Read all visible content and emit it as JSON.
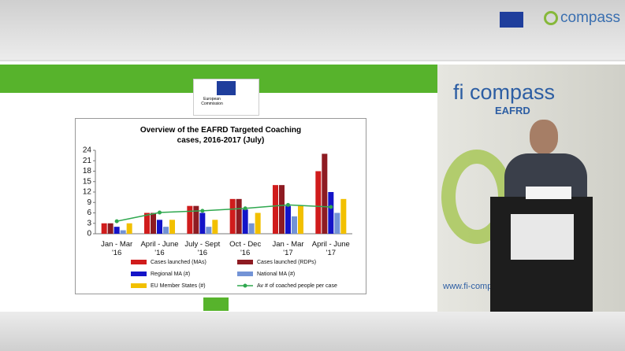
{
  "page": {
    "logo_text": "compass",
    "backdrop_brand": "fi compass",
    "backdrop_sub": "EAFRD",
    "backdrop_url": "www.fi-compass.eu",
    "ec_logo": "European Commission"
  },
  "chart_data": {
    "type": "bar",
    "title": "Overview of the EAFRD Targeted Coaching cases, 2016-2017 (July)",
    "categories": [
      "Jan - Mar\n'16",
      "April - June\n'16",
      "July - Sept\n'16",
      "Oct - Dec\n'16",
      "Jan - Mar\n'17",
      "April - June\n'17"
    ],
    "series": [
      {
        "name": "Cases launched (MAs)",
        "color": "#d01c1c",
        "values": [
          3,
          6,
          8,
          10,
          14,
          18
        ]
      },
      {
        "name": "Cases launched (RDPs)",
        "color": "#8e1b22",
        "values": [
          3,
          6,
          8,
          10,
          14,
          23
        ]
      },
      {
        "name": "Regional MA (#)",
        "color": "#1414c8",
        "values": [
          2,
          4,
          6,
          7,
          8,
          12
        ]
      },
      {
        "name": "National MA (#)",
        "color": "#7393d6",
        "values": [
          1,
          2,
          2,
          3,
          5,
          6
        ]
      },
      {
        "name": "EU Member States (#)",
        "color": "#f2c000",
        "values": [
          3,
          4,
          4,
          6,
          8,
          10
        ]
      },
      {
        "name": "Av # of coached people per case",
        "color": "#2fa84f",
        "type": "line",
        "values": [
          3.6,
          6.1,
          6.6,
          7.3,
          8.3,
          7.7
        ]
      }
    ],
    "ylim": [
      0,
      24
    ],
    "yticks": [
      0,
      3,
      6,
      9,
      12,
      15,
      18,
      21,
      24
    ],
    "grid": false,
    "legend": "bottom"
  }
}
